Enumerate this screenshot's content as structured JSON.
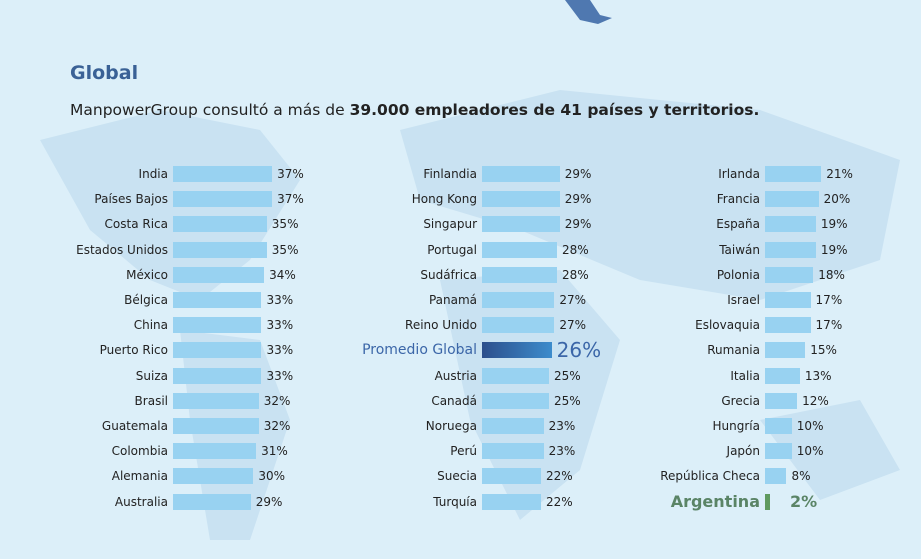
{
  "header": {
    "title": "Global",
    "subtitle_prefix": "ManpowerGroup consultó a más de ",
    "subtitle_bold": "39.000 empleadores de 41 países y territorios."
  },
  "colors": {
    "bar": "#98d2f1",
    "global_average": "#2c4f8c",
    "argentina": "#5f9a5f",
    "title": "#3a6196",
    "background": "#dceff9"
  },
  "chart_data": {
    "type": "bar",
    "orientation": "horizontal",
    "unit": "%",
    "columns": [
      [
        {
          "label": "India",
          "value": 37
        },
        {
          "label": "Países Bajos",
          "value": 37
        },
        {
          "label": "Costa Rica",
          "value": 35
        },
        {
          "label": "Estados Unidos",
          "value": 35
        },
        {
          "label": "México",
          "value": 34
        },
        {
          "label": "Bélgica",
          "value": 33
        },
        {
          "label": "China",
          "value": 33
        },
        {
          "label": "Puerto Rico",
          "value": 33
        },
        {
          "label": "Suiza",
          "value": 33
        },
        {
          "label": "Brasil",
          "value": 32
        },
        {
          "label": "Guatemala",
          "value": 32
        },
        {
          "label": "Colombia",
          "value": 31
        },
        {
          "label": "Alemania",
          "value": 30
        },
        {
          "label": "Australia",
          "value": 29
        }
      ],
      [
        {
          "label": "Finlandia",
          "value": 29
        },
        {
          "label": "Hong Kong",
          "value": 29
        },
        {
          "label": "Singapur",
          "value": 29
        },
        {
          "label": "Portugal",
          "value": 28
        },
        {
          "label": "Sudáfrica",
          "value": 28
        },
        {
          "label": "Panamá",
          "value": 27
        },
        {
          "label": "Reino Unido",
          "value": 27
        },
        {
          "label": "Promedio Global",
          "value": 26,
          "highlight": "global"
        },
        {
          "label": "Austria",
          "value": 25
        },
        {
          "label": "Canadá",
          "value": 25
        },
        {
          "label": "Noruega",
          "value": 23
        },
        {
          "label": "Perú",
          "value": 23
        },
        {
          "label": "Suecia",
          "value": 22
        },
        {
          "label": "Turquía",
          "value": 22
        }
      ],
      [
        {
          "label": "Irlanda",
          "value": 21
        },
        {
          "label": "Francia",
          "value": 20
        },
        {
          "label": "España",
          "value": 19
        },
        {
          "label": "Taiwán",
          "value": 19
        },
        {
          "label": "Polonia",
          "value": 18
        },
        {
          "label": "Israel",
          "value": 17
        },
        {
          "label": "Eslovaquia",
          "value": 17
        },
        {
          "label": "Rumania",
          "value": 15
        },
        {
          "label": "Italia",
          "value": 13
        },
        {
          "label": "Grecia",
          "value": 12
        },
        {
          "label": "Hungría",
          "value": 10
        },
        {
          "label": "Japón",
          "value": 10
        },
        {
          "label": "República Checa",
          "value": 8
        },
        {
          "label": "Argentina",
          "value": 2,
          "highlight": "argentina"
        }
      ]
    ]
  }
}
